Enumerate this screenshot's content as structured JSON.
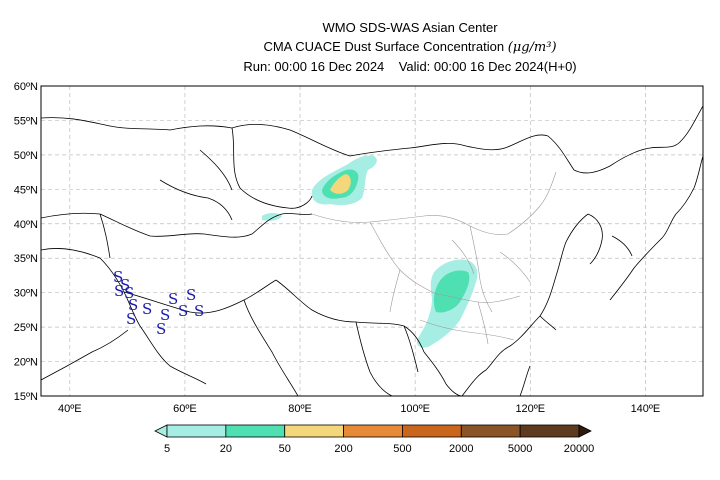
{
  "title": {
    "line1": "WMO SDS-WAS Asian Center",
    "line2_prefix": "CMA CUACE Dust Surface Concentration ",
    "line2_unit": "(μg/m³)",
    "line3": "Run: 00:00 16 Dec 2024    Valid: 00:00 16 Dec 2024(H+0)"
  },
  "map": {
    "lon_range": [
      35,
      150
    ],
    "lat_range": [
      15,
      60
    ],
    "lat_ticks": [
      "60ºN",
      "55ºN",
      "50ºN",
      "45ºN",
      "40ºN",
      "35ºN",
      "30ºN",
      "25ºN",
      "20ºN",
      "15ºN"
    ],
    "lat_values": [
      60,
      55,
      50,
      45,
      40,
      35,
      30,
      25,
      20,
      15
    ],
    "lon_ticks": [
      "40ºE",
      "60ºE",
      "80ºE",
      "100ºE",
      "120ºE",
      "140ºE"
    ],
    "lon_values": [
      40,
      60,
      80,
      100,
      120,
      140
    ],
    "gridlines": true
  },
  "colorbar": {
    "labels": [
      "5",
      "20",
      "50",
      "200",
      "500",
      "2000",
      "5000",
      "20000"
    ],
    "colors": [
      "#a6ede3",
      "#4fe0b2",
      "#f5d77b",
      "#e68a35",
      "#c9661c",
      "#8a5427",
      "#5e3a1e",
      "#2e1b0d"
    ]
  },
  "dust_symbol": "S"
}
